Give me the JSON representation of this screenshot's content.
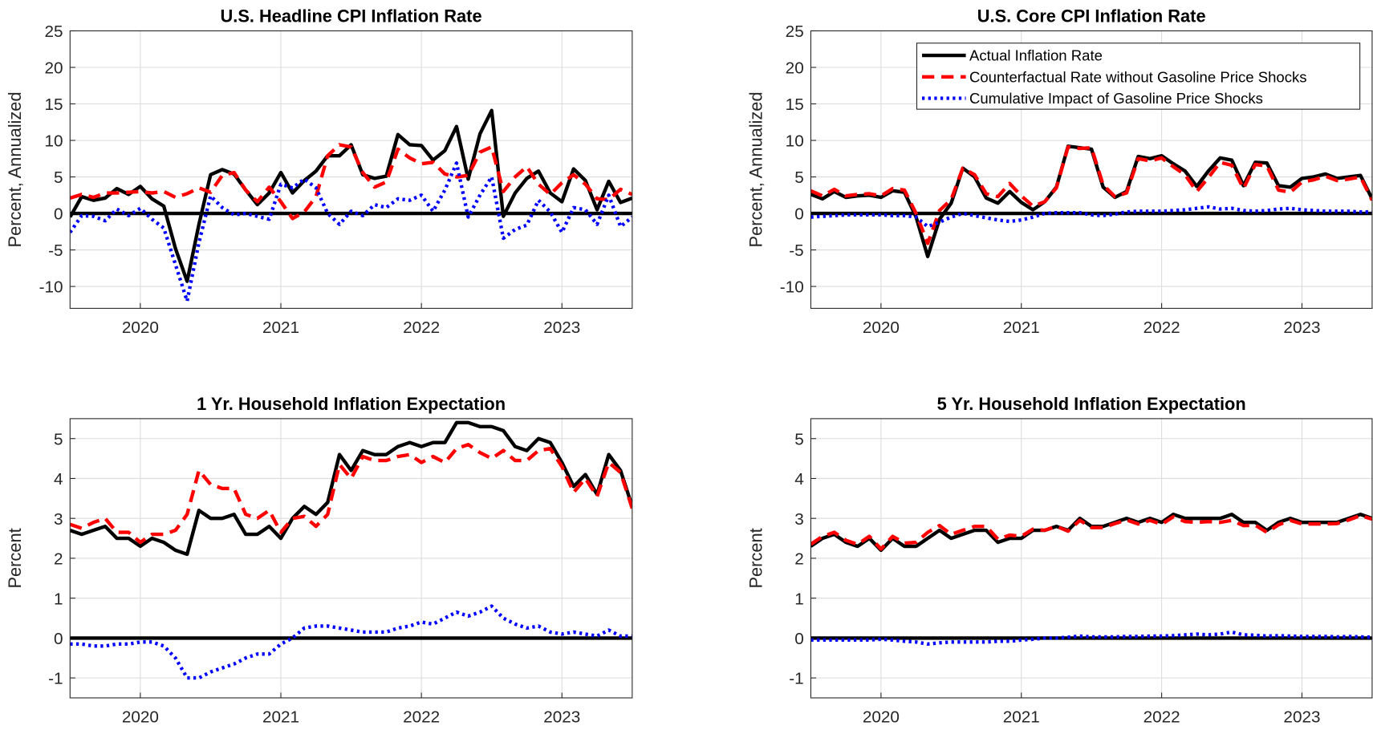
{
  "chart_data": [
    {
      "type": "line",
      "title": "U.S. Headline CPI Inflation Rate",
      "y_label": "Percent, Annualized",
      "x": [
        2019.5,
        2019.583,
        2019.667,
        2019.75,
        2019.833,
        2019.917,
        2020,
        2020.083,
        2020.167,
        2020.25,
        2020.333,
        2020.417,
        2020.5,
        2020.583,
        2020.667,
        2020.75,
        2020.833,
        2020.917,
        2021,
        2021.083,
        2021.167,
        2021.25,
        2021.333,
        2021.417,
        2021.5,
        2021.583,
        2021.667,
        2021.75,
        2021.833,
        2021.917,
        2022,
        2022.083,
        2022.167,
        2022.25,
        2022.333,
        2022.417,
        2022.5,
        2022.583,
        2022.667,
        2022.75,
        2022.833,
        2022.917,
        2023,
        2023.083,
        2023.167,
        2023.25,
        2023.333,
        2023.417,
        2023.5
      ],
      "xlim": [
        2019.5,
        2023.5
      ],
      "xticks": [
        2020,
        2021,
        2022,
        2023
      ],
      "ylim": [
        -13,
        25
      ],
      "yticks": [
        -10,
        -5,
        0,
        5,
        10,
        15,
        20,
        25
      ],
      "grid": true,
      "series": [
        {
          "color": "#000000",
          "linestyle": "solid",
          "values": [
            -0.5,
            2.3,
            1.8,
            2.1,
            3.4,
            2.6,
            3.7,
            2.0,
            1.0,
            -4.8,
            -9.3,
            -1.5,
            5.3,
            6.0,
            5.4,
            3.2,
            1.2,
            2.8,
            5.6,
            2.8,
            4.5,
            5.8,
            7.9,
            7.9,
            9.4,
            5.3,
            4.8,
            5.1,
            10.8,
            9.4,
            9.3,
            7.3,
            8.6,
            11.9,
            4.7,
            10.9,
            14.1,
            -0.4,
            2.8,
            4.8,
            5.8,
            2.8,
            1.6,
            6.1,
            4.5,
            0.5,
            4.4,
            1.5,
            2.1
          ]
        },
        {
          "color": "#ff0000",
          "linestyle": "dashed",
          "values": [
            2.1,
            2.6,
            2.2,
            2.8,
            2.8,
            2.9,
            3.0,
            2.8,
            3.0,
            2.2,
            2.7,
            3.5,
            2.9,
            5.2,
            5.6,
            3.2,
            1.6,
            3.6,
            1.6,
            -0.7,
            0.2,
            2.3,
            7.9,
            9.4,
            9.1,
            5.6,
            3.6,
            4.3,
            8.8,
            7.6,
            6.8,
            7.0,
            5.4,
            5.0,
            5.2,
            8.4,
            9.1,
            3.0,
            5.0,
            6.4,
            4.0,
            2.6,
            4.2,
            5.3,
            4.0,
            2.0,
            1.9,
            3.3,
            2.6
          ]
        },
        {
          "color": "#0000ff",
          "linestyle": "dotted",
          "values": [
            -2.6,
            -0.3,
            -0.4,
            -1.0,
            0.6,
            -0.3,
            0.7,
            -0.8,
            -2.0,
            -7.0,
            -12.0,
            -4.0,
            2.4,
            0.8,
            -0.2,
            0.0,
            -0.4,
            -0.8,
            4.0,
            3.5,
            4.7,
            3.5,
            0.0,
            -1.5,
            0.3,
            -0.3,
            1.2,
            0.8,
            2.0,
            1.8,
            2.5,
            0.3,
            3.2,
            6.9,
            -0.5,
            2.5,
            5.0,
            -3.4,
            -2.2,
            -1.6,
            1.8,
            0.2,
            -2.6,
            0.8,
            0.5,
            -1.5,
            2.5,
            -1.8,
            -0.5
          ]
        }
      ]
    },
    {
      "type": "line",
      "title": "U.S. Core CPI Inflation Rate",
      "y_label": "Percent, Annualized",
      "x": [
        2019.5,
        2019.583,
        2019.667,
        2019.75,
        2019.833,
        2019.917,
        2020,
        2020.083,
        2020.167,
        2020.25,
        2020.333,
        2020.417,
        2020.5,
        2020.583,
        2020.667,
        2020.75,
        2020.833,
        2020.917,
        2021,
        2021.083,
        2021.167,
        2021.25,
        2021.333,
        2021.417,
        2021.5,
        2021.583,
        2021.667,
        2021.75,
        2021.833,
        2021.917,
        2022,
        2022.083,
        2022.167,
        2022.25,
        2022.333,
        2022.417,
        2022.5,
        2022.583,
        2022.667,
        2022.75,
        2022.833,
        2022.917,
        2023,
        2023.083,
        2023.167,
        2023.25,
        2023.333,
        2023.417,
        2023.5
      ],
      "xlim": [
        2019.5,
        2023.5
      ],
      "xticks": [
        2020,
        2021,
        2022,
        2023
      ],
      "ylim": [
        -13,
        25
      ],
      "yticks": [
        -10,
        -5,
        0,
        5,
        10,
        15,
        20,
        25
      ],
      "grid": true,
      "legend": "upper right",
      "series": [
        {
          "name": "Actual Inflation Rate",
          "color": "#000000",
          "linestyle": "solid",
          "values": [
            2.6,
            2.0,
            3.0,
            2.2,
            2.4,
            2.5,
            2.2,
            3.1,
            2.9,
            -0.5,
            -5.9,
            -0.8,
            1.4,
            6.2,
            5.0,
            2.1,
            1.4,
            3.0,
            1.5,
            0.5,
            1.6,
            3.6,
            9.2,
            9.0,
            8.8,
            3.6,
            2.2,
            3.0,
            7.8,
            7.5,
            7.9,
            6.8,
            5.8,
            3.7,
            5.8,
            7.6,
            7.3,
            3.8,
            7.0,
            6.9,
            3.8,
            3.6,
            4.8,
            5.0,
            5.4,
            4.8,
            5.0,
            5.2,
            2.0
          ]
        },
        {
          "name": "Counterfactual Rate without Gasoline Price Shocks",
          "color": "#ff0000",
          "linestyle": "dashed",
          "values": [
            3.1,
            2.4,
            3.3,
            2.4,
            2.6,
            2.7,
            2.4,
            3.4,
            3.2,
            0.0,
            -4.1,
            0.4,
            1.9,
            6.2,
            5.3,
            2.7,
            2.3,
            4.1,
            2.4,
            1.0,
            1.6,
            3.5,
            9.1,
            8.9,
            9.0,
            3.9,
            2.3,
            2.8,
            7.5,
            7.2,
            7.6,
            6.4,
            5.3,
            3.0,
            4.9,
            7.0,
            6.6,
            3.4,
            6.7,
            6.5,
            3.2,
            2.9,
            4.3,
            4.6,
            5.1,
            4.5,
            4.7,
            5.0,
            1.8
          ]
        },
        {
          "name": "Cumulative Impact of Gasoline Price Shocks",
          "color": "#0000ff",
          "linestyle": "dotted",
          "values": [
            -0.5,
            -0.4,
            -0.3,
            -0.2,
            -0.2,
            -0.2,
            -0.2,
            -0.3,
            -0.3,
            -0.5,
            -1.8,
            -1.2,
            -0.5,
            0,
            -0.3,
            -0.6,
            -0.9,
            -1.1,
            -0.9,
            -0.5,
            0,
            0.1,
            0.1,
            0.1,
            -0.2,
            -0.3,
            -0.1,
            0.2,
            0.3,
            0.3,
            0.3,
            0.4,
            0.5,
            0.7,
            0.9,
            0.6,
            0.7,
            0.4,
            0.3,
            0.4,
            0.6,
            0.7,
            0.5,
            0.4,
            0.3,
            0.3,
            0.3,
            0.2,
            0.2
          ]
        }
      ]
    },
    {
      "type": "line",
      "title": "1 Yr. Household Inflation Expectation",
      "y_label": "Percent",
      "x": [
        2019.5,
        2019.583,
        2019.667,
        2019.75,
        2019.833,
        2019.917,
        2020,
        2020.083,
        2020.167,
        2020.25,
        2020.333,
        2020.417,
        2020.5,
        2020.583,
        2020.667,
        2020.75,
        2020.833,
        2020.917,
        2021,
        2021.083,
        2021.167,
        2021.25,
        2021.333,
        2021.417,
        2021.5,
        2021.583,
        2021.667,
        2021.75,
        2021.833,
        2021.917,
        2022,
        2022.083,
        2022.167,
        2022.25,
        2022.333,
        2022.417,
        2022.5,
        2022.583,
        2022.667,
        2022.75,
        2022.833,
        2022.917,
        2023,
        2023.083,
        2023.167,
        2023.25,
        2023.333,
        2023.417,
        2023.5
      ],
      "xlim": [
        2019.5,
        2023.5
      ],
      "xticks": [
        2020,
        2021,
        2022,
        2023
      ],
      "ylim": [
        -1.5,
        5.5
      ],
      "yticks": [
        -1,
        0,
        1,
        2,
        3,
        4,
        5
      ],
      "grid": true,
      "series": [
        {
          "color": "#000000",
          "linestyle": "solid",
          "values": [
            2.7,
            2.6,
            2.7,
            2.8,
            2.5,
            2.5,
            2.3,
            2.5,
            2.4,
            2.2,
            2.1,
            3.2,
            3.0,
            3.0,
            3.1,
            2.6,
            2.6,
            2.8,
            2.5,
            3.0,
            3.3,
            3.1,
            3.4,
            4.6,
            4.2,
            4.7,
            4.6,
            4.6,
            4.8,
            4.9,
            4.8,
            4.9,
            4.9,
            5.4,
            5.4,
            5.3,
            5.3,
            5.2,
            4.8,
            4.7,
            5.0,
            4.9,
            4.4,
            3.8,
            4.1,
            3.6,
            4.6,
            4.2,
            3.3
          ]
        },
        {
          "color": "#ff0000",
          "linestyle": "dashed",
          "values": [
            2.85,
            2.75,
            2.9,
            3.0,
            2.65,
            2.65,
            2.4,
            2.6,
            2.6,
            2.7,
            3.1,
            4.2,
            3.85,
            3.75,
            3.75,
            3.1,
            3.0,
            3.2,
            2.65,
            3.0,
            3.05,
            2.8,
            3.1,
            4.35,
            4.0,
            4.55,
            4.45,
            4.45,
            4.55,
            4.6,
            4.4,
            4.55,
            4.4,
            4.75,
            4.85,
            4.65,
            4.5,
            4.7,
            4.45,
            4.45,
            4.7,
            4.75,
            4.3,
            3.65,
            4.0,
            3.55,
            4.4,
            4.15,
            3.25
          ]
        },
        {
          "color": "#0000ff",
          "linestyle": "dotted",
          "values": [
            -0.15,
            -0.15,
            -0.2,
            -0.2,
            -0.15,
            -0.15,
            -0.1,
            -0.1,
            -0.2,
            -0.5,
            -1.0,
            -1.0,
            -0.85,
            -0.75,
            -0.65,
            -0.5,
            -0.4,
            -0.4,
            -0.15,
            0,
            0.25,
            0.3,
            0.3,
            0.25,
            0.2,
            0.15,
            0.15,
            0.15,
            0.25,
            0.3,
            0.4,
            0.35,
            0.5,
            0.65,
            0.55,
            0.65,
            0.8,
            0.5,
            0.35,
            0.25,
            0.3,
            0.15,
            0.1,
            0.15,
            0.1,
            0.05,
            0.2,
            0.05,
            0.05
          ]
        }
      ]
    },
    {
      "type": "line",
      "title": "5 Yr. Household Inflation Expectation",
      "y_label": "Percent",
      "x": [
        2019.5,
        2019.583,
        2019.667,
        2019.75,
        2019.833,
        2019.917,
        2020,
        2020.083,
        2020.167,
        2020.25,
        2020.333,
        2020.417,
        2020.5,
        2020.583,
        2020.667,
        2020.75,
        2020.833,
        2020.917,
        2021,
        2021.083,
        2021.167,
        2021.25,
        2021.333,
        2021.417,
        2021.5,
        2021.583,
        2021.667,
        2021.75,
        2021.833,
        2021.917,
        2022,
        2022.083,
        2022.167,
        2022.25,
        2022.333,
        2022.417,
        2022.5,
        2022.583,
        2022.667,
        2022.75,
        2022.833,
        2022.917,
        2023,
        2023.083,
        2023.167,
        2023.25,
        2023.333,
        2023.417,
        2023.5
      ],
      "xlim": [
        2019.5,
        2023.5
      ],
      "xticks": [
        2020,
        2021,
        2022,
        2023
      ],
      "ylim": [
        -1.5,
        5.5
      ],
      "yticks": [
        -1,
        0,
        1,
        2,
        3,
        4,
        5
      ],
      "grid": true,
      "series": [
        {
          "color": "#000000",
          "linestyle": "solid",
          "values": [
            2.3,
            2.5,
            2.6,
            2.4,
            2.3,
            2.5,
            2.2,
            2.5,
            2.3,
            2.3,
            2.5,
            2.7,
            2.5,
            2.6,
            2.7,
            2.7,
            2.4,
            2.5,
            2.5,
            2.7,
            2.7,
            2.8,
            2.7,
            3.0,
            2.8,
            2.8,
            2.9,
            3.0,
            2.9,
            3.0,
            2.9,
            3.1,
            3.0,
            3.0,
            3.0,
            3.0,
            3.1,
            2.9,
            2.9,
            2.7,
            2.9,
            3.0,
            2.9,
            2.9,
            2.9,
            2.9,
            3.0,
            3.1,
            3.0
          ]
        },
        {
          "color": "#ff0000",
          "linestyle": "dashed",
          "values": [
            2.35,
            2.55,
            2.65,
            2.45,
            2.35,
            2.55,
            2.23,
            2.55,
            2.38,
            2.4,
            2.65,
            2.82,
            2.6,
            2.7,
            2.8,
            2.8,
            2.48,
            2.58,
            2.55,
            2.73,
            2.7,
            2.8,
            2.68,
            2.95,
            2.77,
            2.77,
            2.87,
            2.96,
            2.86,
            2.95,
            2.85,
            3.04,
            2.92,
            2.9,
            2.92,
            2.9,
            2.95,
            2.82,
            2.83,
            2.65,
            2.84,
            2.95,
            2.86,
            2.86,
            2.86,
            2.87,
            2.96,
            3.07,
            2.98
          ]
        },
        {
          "color": "#0000ff",
          "linestyle": "dotted",
          "values": [
            -0.05,
            -0.05,
            -0.05,
            -0.05,
            -0.05,
            -0.05,
            -0.03,
            -0.05,
            -0.08,
            -0.1,
            -0.15,
            -0.12,
            -0.1,
            -0.1,
            -0.1,
            -0.1,
            -0.08,
            -0.08,
            -0.05,
            -0.03,
            0,
            0,
            0.02,
            0.05,
            0.03,
            0.03,
            0.03,
            0.04,
            0.04,
            0.05,
            0.05,
            0.06,
            0.08,
            0.1,
            0.08,
            0.1,
            0.15,
            0.08,
            0.07,
            0.05,
            0.06,
            0.05,
            0.04,
            0.04,
            0.04,
            0.03,
            0.04,
            0.03,
            0.02
          ]
        }
      ]
    }
  ]
}
